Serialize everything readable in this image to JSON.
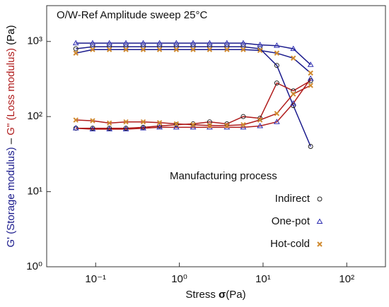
{
  "chart_data": {
    "type": "line",
    "title": "O/W-Ref  Amplitude sweep 25°C",
    "x_label": [
      "Stress ",
      "σ",
      "(Pa)"
    ],
    "y_label": [
      {
        "text": "G' (Storage modulus)",
        "color": "#1a1a8c"
      },
      {
        "text": " – ",
        "color": "#000000"
      },
      {
        "text": "G\" (Loss modulus)",
        "color": "#b01c1c"
      },
      {
        "text": " (Pa)",
        "color": "#000000"
      }
    ],
    "log_x": true,
    "log_y": true,
    "xlim": [
      0.026,
      290
    ],
    "ylim": [
      1,
      3000
    ],
    "xticks": [
      {
        "value": 0.1,
        "label": "10⁻¹"
      },
      {
        "value": 1,
        "label": "10⁰"
      },
      {
        "value": 10,
        "label": "10¹"
      },
      {
        "value": 100,
        "label": "10²"
      }
    ],
    "yticks": [
      {
        "value": 1,
        "label": "10⁰"
      },
      {
        "value": 10,
        "label": "10¹"
      },
      {
        "value": 100,
        "label": "10²"
      },
      {
        "value": 1000,
        "label": "10³"
      }
    ],
    "storage_line_color": "#1a1a8c",
    "loss_line_color": "#b01c1c",
    "legend_title": "Manufacturing process",
    "x": [
      0.058,
      0.092,
      0.146,
      0.23,
      0.37,
      0.58,
      0.92,
      1.46,
      2.3,
      3.7,
      5.8,
      9.2,
      14.6,
      23,
      37
    ],
    "series": [
      {
        "name": "Indirect",
        "marker": "circle",
        "color": "#222222",
        "storage": [
          800,
          850,
          850,
          850,
          850,
          850,
          850,
          850,
          850,
          850,
          850,
          800,
          480,
          140,
          40
        ],
        "loss": [
          70,
          70,
          70,
          70,
          72,
          75,
          78,
          80,
          85,
          80,
          100,
          95,
          280,
          220,
          300
        ]
      },
      {
        "name": "One-pot",
        "marker": "triangle",
        "color": "#2a2ab0",
        "storage": [
          950,
          950,
          950,
          950,
          950,
          950,
          950,
          950,
          950,
          950,
          950,
          900,
          880,
          800,
          490
        ],
        "loss": [
          70,
          68,
          68,
          68,
          70,
          72,
          72,
          72,
          72,
          72,
          72,
          75,
          85,
          150,
          320
        ]
      },
      {
        "name": "Hot-cold",
        "marker": "cross",
        "color": "#d08a30",
        "storage": [
          700,
          780,
          780,
          780,
          780,
          780,
          780,
          780,
          780,
          780,
          780,
          760,
          700,
          600,
          380
        ],
        "loss": [
          90,
          88,
          82,
          85,
          85,
          83,
          80,
          78,
          76,
          76,
          78,
          90,
          110,
          200,
          260
        ]
      }
    ]
  }
}
